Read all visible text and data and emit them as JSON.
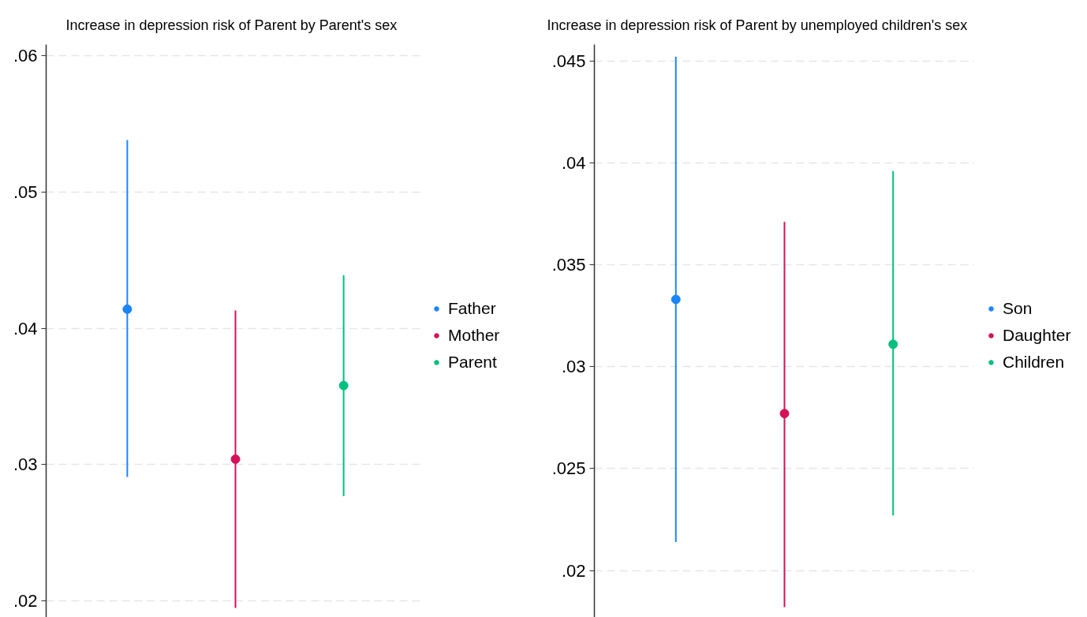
{
  "chart_data": [
    {
      "type": "scatter",
      "title": "Increase in depression risk of Parent by Parent's sex",
      "categories": [
        null,
        null,
        null
      ],
      "series": [
        {
          "name": "Father",
          "color": "#1a85ff",
          "values": [
            0.0414,
            null,
            null
          ],
          "errors": [
            [
              0.0291,
              0.0538
            ],
            null,
            null
          ]
        },
        {
          "name": "Mother",
          "color": "#d41159",
          "values": [
            null,
            0.0304,
            null
          ],
          "errors": [
            null,
            [
              0.0195,
              0.0413
            ],
            null
          ]
        },
        {
          "name": "Parent",
          "color": "#00bf7f",
          "values": [
            null,
            null,
            0.0358
          ],
          "errors": [
            null,
            null,
            [
              0.0277,
              0.0439
            ]
          ]
        }
      ],
      "ylim": [
        0.0188,
        0.0608
      ],
      "yticks": [
        {
          "value": 0.02,
          "label": ".02"
        },
        {
          "value": 0.03,
          "label": ".03"
        },
        {
          "value": 0.04,
          "label": ".04"
        },
        {
          "value": 0.05,
          "label": ".05"
        },
        {
          "value": 0.06,
          "label": ".06"
        }
      ],
      "grid": "y",
      "legend": "right",
      "tick_labels": "y",
      "marker": "circle"
    },
    {
      "type": "scatter",
      "title": "Increase in depression risk of Parent by unemployed children's sex",
      "categories": [
        null,
        null,
        null
      ],
      "series": [
        {
          "name": "Son",
          "color": "#1a85ff",
          "values": [
            0.0333,
            null,
            null
          ],
          "errors": [
            [
              0.0214,
              0.0452
            ],
            null,
            null
          ]
        },
        {
          "name": "Daughter",
          "color": "#d41159",
          "values": [
            null,
            0.0277,
            null
          ],
          "errors": [
            null,
            [
              0.0182,
              0.0371
            ],
            null
          ]
        },
        {
          "name": "Children",
          "color": "#00bf7f",
          "values": [
            null,
            null,
            0.0311
          ],
          "errors": [
            null,
            null,
            [
              0.0227,
              0.0396
            ]
          ]
        }
      ],
      "ylim": [
        0.0177,
        0.0458
      ],
      "yticks": [
        {
          "value": 0.02,
          "label": ".02"
        },
        {
          "value": 0.025,
          "label": ".025"
        },
        {
          "value": 0.03,
          "label": ".03"
        },
        {
          "value": 0.035,
          "label": ".035"
        },
        {
          "value": 0.04,
          "label": ".04"
        },
        {
          "value": 0.045,
          "label": ".045"
        }
      ],
      "grid": "y",
      "legend": "right",
      "tick_labels": "y",
      "marker": "circle"
    }
  ]
}
